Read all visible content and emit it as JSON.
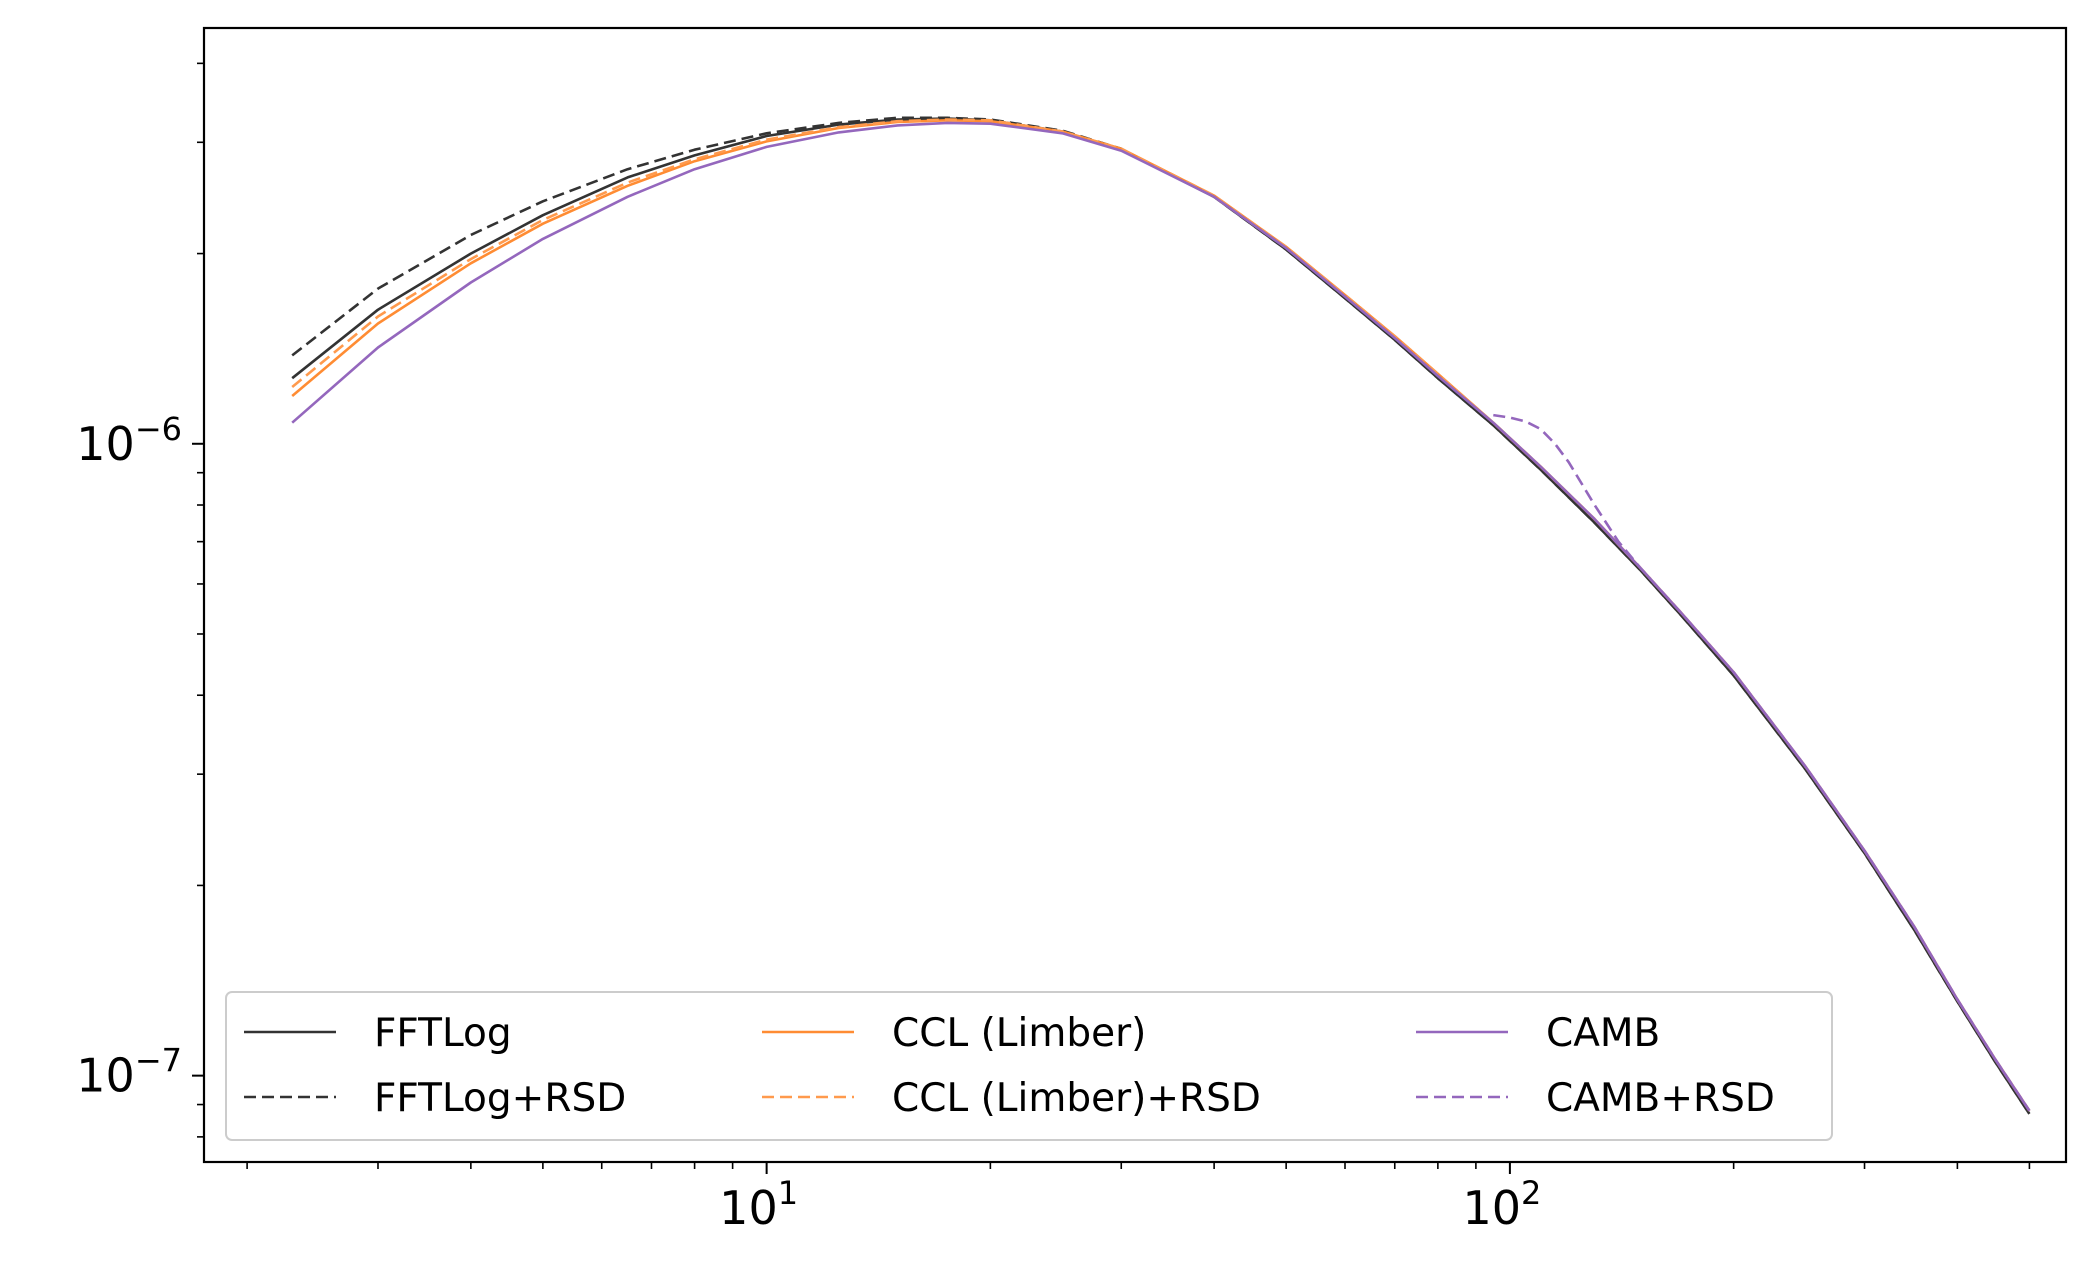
{
  "chart_data": {
    "type": "line",
    "title": "",
    "xlabel": "",
    "ylabel": "",
    "xscale": "log",
    "yscale": "log",
    "xlim": [
      1.75,
      560
    ],
    "ylim": [
      7.3e-08,
      4.55e-06
    ],
    "grid": false,
    "legend": {
      "location": "lower-left",
      "columns": 3
    },
    "x_ticks": [
      {
        "value": 10,
        "base": "10",
        "exp": "1"
      },
      {
        "value": 100,
        "base": "10",
        "exp": "2"
      }
    ],
    "y_ticks": [
      {
        "value": 1e-06,
        "base": "10",
        "exp": "−6"
      },
      {
        "value": 1e-07,
        "base": "10",
        "exp": "−7"
      }
    ],
    "series": [
      {
        "name": "FFTLog",
        "color": "#333333",
        "dash": "solid",
        "x": [
          2.3,
          3,
          4,
          5,
          6.5,
          8,
          10,
          12.5,
          15,
          17.5,
          20,
          25,
          30,
          40,
          50,
          60,
          70,
          80,
          95,
          110,
          130,
          150,
          170,
          200,
          250,
          300,
          350,
          400,
          450,
          500
        ],
        "y": [
          1.27e-06,
          1.63e-06,
          2e-06,
          2.3e-06,
          2.64e-06,
          2.86e-06,
          3.07e-06,
          3.2e-06,
          3.26e-06,
          3.27e-06,
          3.25e-06,
          3.12e-06,
          2.92e-06,
          2.46e-06,
          2.03e-06,
          1.7e-06,
          1.46e-06,
          1.27e-06,
          1.07e-06,
          9.1e-07,
          7.5e-07,
          6.3e-07,
          5.35e-07,
          4.3e-07,
          3.05e-07,
          2.25e-07,
          1.7e-07,
          1.31e-07,
          1.05e-07,
          8.7e-08
        ]
      },
      {
        "name": "FFTLog+RSD",
        "color": "#333333",
        "dash": "dashed",
        "x": [
          2.3,
          3,
          4,
          5,
          6.5,
          8,
          10,
          12.5,
          15,
          17.5,
          20,
          25,
          30,
          40,
          50,
          60,
          70,
          80,
          95,
          110,
          130,
          150,
          170,
          200,
          250,
          300,
          350,
          400,
          450,
          500
        ],
        "y": [
          1.38e-06,
          1.76e-06,
          2.14e-06,
          2.42e-06,
          2.72e-06,
          2.92e-06,
          3.1e-06,
          3.22e-06,
          3.28e-06,
          3.28e-06,
          3.26e-06,
          3.13e-06,
          2.93e-06,
          2.46e-06,
          2.03e-06,
          1.7e-06,
          1.46e-06,
          1.27e-06,
          1.07e-06,
          9.1e-07,
          7.5e-07,
          6.3e-07,
          5.35e-07,
          4.3e-07,
          3.05e-07,
          2.25e-07,
          1.7e-07,
          1.31e-07,
          1.05e-07,
          8.7e-08
        ]
      },
      {
        "name": "CCL (Limber)",
        "color": "#ff8c33",
        "dash": "solid",
        "x": [
          2.3,
          3,
          4,
          5,
          6.5,
          8,
          10,
          12.5,
          15,
          17.5,
          20,
          25,
          30,
          40,
          50,
          60,
          70,
          80,
          95,
          110,
          130,
          150,
          170,
          200,
          250,
          300,
          350,
          400,
          450,
          500
        ],
        "y": [
          1.19e-06,
          1.55e-06,
          1.93e-06,
          2.23e-06,
          2.56e-06,
          2.8e-06,
          3.01e-06,
          3.16e-06,
          3.23e-06,
          3.25e-06,
          3.24e-06,
          3.12e-06,
          2.93e-06,
          2.47e-06,
          2.05e-06,
          1.72e-06,
          1.48e-06,
          1.29e-06,
          1.08e-06,
          9.2e-07,
          7.6e-07,
          6.35e-07,
          5.4e-07,
          4.35e-07,
          3.08e-07,
          2.27e-07,
          1.72e-07,
          1.32e-07,
          1.06e-07,
          8.8e-08
        ]
      },
      {
        "name": "CCL (Limber)+RSD",
        "color": "#ff9a4d",
        "dash": "dashed",
        "x": [
          2.3,
          3,
          4,
          5,
          6.5,
          8,
          10,
          12.5,
          15,
          17.5,
          20,
          25,
          30,
          40,
          50,
          60,
          70,
          80,
          95,
          110,
          130,
          150,
          170,
          200,
          250,
          300,
          350,
          400,
          450,
          500
        ],
        "y": [
          1.23e-06,
          1.59e-06,
          1.96e-06,
          2.26e-06,
          2.59e-06,
          2.82e-06,
          3.03e-06,
          3.17e-06,
          3.24e-06,
          3.26e-06,
          3.25e-06,
          3.12e-06,
          2.93e-06,
          2.47e-06,
          2.05e-06,
          1.72e-06,
          1.48e-06,
          1.29e-06,
          1.08e-06,
          9.2e-07,
          7.6e-07,
          6.35e-07,
          5.4e-07,
          4.35e-07,
          3.08e-07,
          2.27e-07,
          1.72e-07,
          1.32e-07,
          1.06e-07,
          8.8e-08
        ]
      },
      {
        "name": "CAMB",
        "color": "#9467bd",
        "dash": "solid",
        "x": [
          2.3,
          3,
          4,
          5,
          6.5,
          8,
          10,
          12.5,
          15,
          17.5,
          20,
          25,
          30,
          40,
          50,
          60,
          70,
          80,
          95,
          110,
          130,
          150,
          170,
          200,
          250,
          300,
          350,
          400,
          450,
          500
        ],
        "y": [
          1.08e-06,
          1.42e-06,
          1.8e-06,
          2.11e-06,
          2.46e-06,
          2.72e-06,
          2.95e-06,
          3.11e-06,
          3.19e-06,
          3.22e-06,
          3.21e-06,
          3.1e-06,
          2.91e-06,
          2.46e-06,
          2.04e-06,
          1.71e-06,
          1.47e-06,
          1.28e-06,
          1.08e-06,
          9.2e-07,
          7.6e-07,
          6.35e-07,
          5.4e-07,
          4.35e-07,
          3.08e-07,
          2.27e-07,
          1.72e-07,
          1.32e-07,
          1.06e-07,
          8.8e-08
        ]
      },
      {
        "name": "CAMB+RSD",
        "color": "#9467bd",
        "dash": "dashed",
        "x": [
          95,
          100,
          105,
          110,
          115,
          120,
          130,
          140,
          150,
          170,
          200,
          250,
          300,
          350,
          400,
          450,
          500
        ],
        "y": [
          1.11e-06,
          1.1e-06,
          1.085e-06,
          1.055e-06,
          1e-06,
          9.35e-07,
          8e-07,
          7e-07,
          6.35e-07,
          5.4e-07,
          4.35e-07,
          3.08e-07,
          2.27e-07,
          1.72e-07,
          1.32e-07,
          1.06e-07,
          8.8e-08
        ]
      }
    ]
  }
}
